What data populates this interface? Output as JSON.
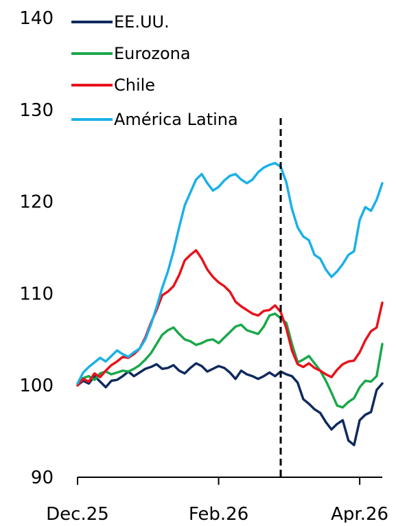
{
  "chart_data": {
    "type": "line",
    "title": "",
    "xlabel": "",
    "ylabel": "",
    "ylim": [
      90,
      140
    ],
    "yticks": [
      90,
      100,
      110,
      120,
      130,
      140
    ],
    "xticks": [
      "Dec.25",
      "Feb.26",
      "Apr.26"
    ],
    "x_tick_positions": [
      0,
      50,
      100
    ],
    "x_range": [
      0,
      108
    ],
    "vline": {
      "x": 72,
      "style": "dashed",
      "color": "#000000"
    },
    "legend_position": "top-left",
    "series": [
      {
        "name": "EE.UU.",
        "color": "#0f2a5e",
        "x": [
          0,
          2,
          4,
          6,
          8,
          10,
          12,
          14,
          16,
          18,
          20,
          22,
          24,
          26,
          28,
          30,
          32,
          34,
          36,
          38,
          40,
          42,
          44,
          46,
          48,
          50,
          52,
          54,
          56,
          58,
          60,
          62,
          64,
          66,
          68,
          70,
          72,
          74,
          76,
          78,
          80,
          82,
          84,
          86,
          88,
          90,
          92,
          94,
          96,
          98,
          100,
          102,
          104,
          106,
          108
        ],
        "values": [
          100.0,
          100.5,
          100.2,
          101.0,
          100.4,
          99.8,
          100.5,
          100.6,
          101.0,
          101.5,
          101.0,
          101.4,
          101.8,
          102.0,
          102.3,
          101.8,
          101.9,
          102.2,
          101.6,
          101.3,
          101.9,
          102.4,
          102.1,
          101.5,
          101.8,
          102.1,
          101.9,
          101.4,
          100.7,
          101.6,
          101.2,
          101.0,
          100.7,
          101.0,
          101.4,
          101.0,
          101.5,
          101.2,
          101.0,
          100.3,
          98.5,
          98.0,
          97.4,
          97.0,
          96.0,
          95.2,
          95.8,
          96.2,
          94.0,
          93.5,
          96.2,
          96.8,
          97.1,
          99.5,
          100.2
        ]
      },
      {
        "name": "Eurozona",
        "color": "#1aa84a",
        "x": [
          0,
          2,
          4,
          6,
          8,
          10,
          12,
          14,
          16,
          18,
          20,
          22,
          24,
          26,
          28,
          30,
          32,
          34,
          36,
          38,
          40,
          42,
          44,
          46,
          48,
          50,
          52,
          54,
          56,
          58,
          60,
          62,
          64,
          66,
          68,
          70,
          72,
          74,
          76,
          78,
          80,
          82,
          84,
          86,
          88,
          90,
          92,
          94,
          96,
          98,
          100,
          102,
          104,
          106,
          108
        ],
        "values": [
          100.0,
          100.8,
          101.0,
          100.6,
          101.3,
          101.5,
          101.2,
          101.4,
          101.6,
          101.5,
          101.8,
          102.2,
          102.8,
          103.5,
          104.5,
          105.5,
          106.0,
          106.3,
          105.6,
          105.0,
          104.8,
          104.4,
          104.6,
          104.9,
          105.0,
          104.6,
          105.2,
          105.8,
          106.4,
          106.6,
          106.0,
          105.8,
          105.6,
          106.4,
          107.6,
          107.8,
          107.3,
          106.8,
          104.5,
          102.5,
          102.8,
          103.2,
          102.4,
          101.6,
          100.5,
          99.2,
          97.8,
          97.6,
          98.2,
          98.6,
          99.8,
          100.5,
          100.4,
          101.0,
          104.5
        ]
      },
      {
        "name": "Chile",
        "color": "#e8121b",
        "x": [
          0,
          2,
          4,
          6,
          8,
          10,
          12,
          14,
          16,
          18,
          20,
          22,
          24,
          26,
          28,
          30,
          32,
          34,
          36,
          38,
          40,
          42,
          44,
          46,
          48,
          50,
          52,
          54,
          56,
          58,
          60,
          62,
          64,
          66,
          68,
          70,
          72,
          74,
          76,
          78,
          80,
          82,
          84,
          86,
          88,
          90,
          92,
          94,
          96,
          98,
          100,
          102,
          104,
          106,
          108
        ],
        "values": [
          100.0,
          100.7,
          100.4,
          101.3,
          100.9,
          101.6,
          102.2,
          102.6,
          103.1,
          103.0,
          103.4,
          104.0,
          105.2,
          106.8,
          108.2,
          109.8,
          110.2,
          110.8,
          112.0,
          113.6,
          114.2,
          114.7,
          113.8,
          112.6,
          111.8,
          111.2,
          110.8,
          110.2,
          109.1,
          108.6,
          108.2,
          107.8,
          107.6,
          108.1,
          108.2,
          108.7,
          108.0,
          106.2,
          103.8,
          102.3,
          102.0,
          102.4,
          101.9,
          101.6,
          101.2,
          100.9,
          101.7,
          102.3,
          102.6,
          102.7,
          103.6,
          104.9,
          105.9,
          106.3,
          109.0
        ]
      },
      {
        "name": "América Latina",
        "color": "#1ab0e8",
        "x": [
          0,
          2,
          4,
          6,
          8,
          10,
          12,
          14,
          16,
          18,
          20,
          22,
          24,
          26,
          28,
          30,
          32,
          34,
          36,
          38,
          40,
          42,
          44,
          46,
          48,
          50,
          52,
          54,
          56,
          58,
          60,
          62,
          64,
          66,
          68,
          70,
          72,
          74,
          76,
          78,
          80,
          82,
          84,
          86,
          88,
          90,
          92,
          94,
          96,
          98,
          100,
          102,
          104,
          106,
          108
        ],
        "values": [
          100.2,
          101.4,
          102.0,
          102.5,
          103.0,
          102.6,
          103.2,
          103.8,
          103.4,
          103.1,
          103.6,
          104.0,
          105.0,
          106.6,
          108.5,
          110.6,
          112.4,
          114.6,
          117.2,
          119.6,
          121.0,
          122.4,
          123.0,
          122.0,
          121.2,
          121.6,
          122.3,
          122.8,
          123.0,
          122.4,
          122.0,
          122.4,
          123.2,
          123.7,
          124.0,
          124.2,
          123.8,
          122.1,
          119.2,
          117.2,
          116.2,
          115.8,
          114.2,
          113.8,
          112.6,
          111.8,
          112.4,
          113.2,
          114.2,
          114.6,
          118.0,
          119.4,
          119.0,
          120.2,
          122.0
        ]
      }
    ]
  }
}
